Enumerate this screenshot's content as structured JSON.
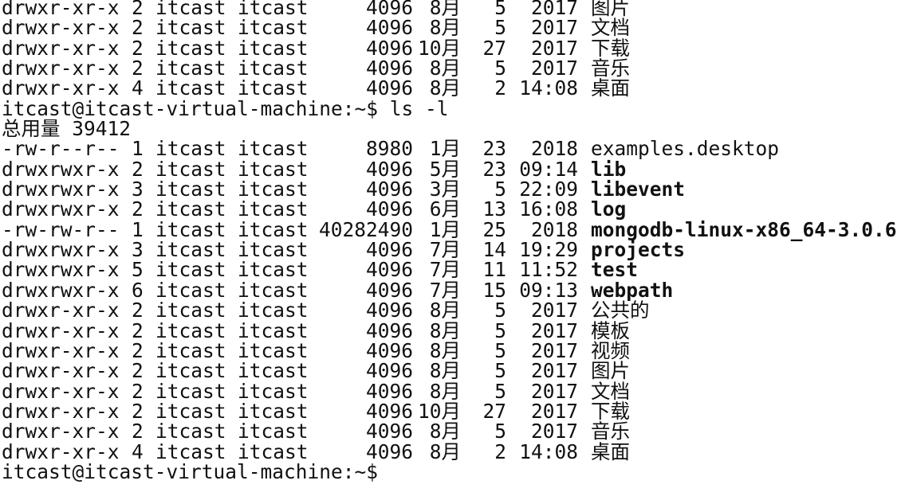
{
  "terminal": {
    "rows": [
      {
        "type": "entry",
        "perms": "drwxr-xr-x",
        "links": "2",
        "owner": "itcast",
        "group": "itcast",
        "size": "4096",
        "month": "8月",
        "day": "5",
        "time": "2017",
        "name": "图片",
        "bold": false
      },
      {
        "type": "entry",
        "perms": "drwxr-xr-x",
        "links": "2",
        "owner": "itcast",
        "group": "itcast",
        "size": "4096",
        "month": "8月",
        "day": "5",
        "time": "2017",
        "name": "文档",
        "bold": false
      },
      {
        "type": "entry",
        "perms": "drwxr-xr-x",
        "links": "2",
        "owner": "itcast",
        "group": "itcast",
        "size": "4096",
        "month": "10月",
        "day": "27",
        "time": "2017",
        "name": "下载",
        "bold": false
      },
      {
        "type": "entry",
        "perms": "drwxr-xr-x",
        "links": "2",
        "owner": "itcast",
        "group": "itcast",
        "size": "4096",
        "month": "8月",
        "day": "5",
        "time": "2017",
        "name": "音乐",
        "bold": false
      },
      {
        "type": "entry",
        "perms": "drwxr-xr-x",
        "links": "4",
        "owner": "itcast",
        "group": "itcast",
        "size": "4096",
        "month": "8月",
        "day": "2",
        "time": "14:08",
        "name": "桌面",
        "bold": false
      },
      {
        "type": "text",
        "text": "itcast@itcast-virtual-machine:~$ ls -l"
      },
      {
        "type": "text",
        "text": "总用量 39412"
      },
      {
        "type": "entry",
        "perms": "-rw-r--r--",
        "links": "1",
        "owner": "itcast",
        "group": "itcast",
        "size": "8980",
        "month": "1月",
        "day": "23",
        "time": "2018",
        "name": "examples.desktop",
        "bold": false
      },
      {
        "type": "entry",
        "perms": "drwxrwxr-x",
        "links": "2",
        "owner": "itcast",
        "group": "itcast",
        "size": "4096",
        "month": "5月",
        "day": "23",
        "time": "09:14",
        "name": "lib",
        "bold": true
      },
      {
        "type": "entry",
        "perms": "drwxrwxr-x",
        "links": "3",
        "owner": "itcast",
        "group": "itcast",
        "size": "4096",
        "month": "3月",
        "day": "5",
        "time": "22:09",
        "name": "libevent",
        "bold": true
      },
      {
        "type": "entry",
        "perms": "drwxrwxr-x",
        "links": "2",
        "owner": "itcast",
        "group": "itcast",
        "size": "4096",
        "month": "6月",
        "day": "13",
        "time": "16:08",
        "name": "log",
        "bold": true
      },
      {
        "type": "entry",
        "perms": "-rw-rw-r--",
        "links": "1",
        "owner": "itcast",
        "group": "itcast",
        "size": "40282490",
        "month": "1月",
        "day": "25",
        "time": "2018",
        "name": "mongodb-linux-x86_64-3.0.6",
        "bold": true
      },
      {
        "type": "entry",
        "perms": "drwxrwxr-x",
        "links": "3",
        "owner": "itcast",
        "group": "itcast",
        "size": "4096",
        "month": "7月",
        "day": "14",
        "time": "19:29",
        "name": "projects",
        "bold": true
      },
      {
        "type": "entry",
        "perms": "drwxrwxr-x",
        "links": "5",
        "owner": "itcast",
        "group": "itcast",
        "size": "4096",
        "month": "7月",
        "day": "11",
        "time": "11:52",
        "name": "test",
        "bold": true
      },
      {
        "type": "entry",
        "perms": "drwxrwxr-x",
        "links": "6",
        "owner": "itcast",
        "group": "itcast",
        "size": "4096",
        "month": "7月",
        "day": "15",
        "time": "09:13",
        "name": "webpath",
        "bold": true
      },
      {
        "type": "entry",
        "perms": "drwxr-xr-x",
        "links": "2",
        "owner": "itcast",
        "group": "itcast",
        "size": "4096",
        "month": "8月",
        "day": "5",
        "time": "2017",
        "name": "公共的",
        "bold": false
      },
      {
        "type": "entry",
        "perms": "drwxr-xr-x",
        "links": "2",
        "owner": "itcast",
        "group": "itcast",
        "size": "4096",
        "month": "8月",
        "day": "5",
        "time": "2017",
        "name": "模板",
        "bold": false
      },
      {
        "type": "entry",
        "perms": "drwxr-xr-x",
        "links": "2",
        "owner": "itcast",
        "group": "itcast",
        "size": "4096",
        "month": "8月",
        "day": "5",
        "time": "2017",
        "name": "视频",
        "bold": false
      },
      {
        "type": "entry",
        "perms": "drwxr-xr-x",
        "links": "2",
        "owner": "itcast",
        "group": "itcast",
        "size": "4096",
        "month": "8月",
        "day": "5",
        "time": "2017",
        "name": "图片",
        "bold": false
      },
      {
        "type": "entry",
        "perms": "drwxr-xr-x",
        "links": "2",
        "owner": "itcast",
        "group": "itcast",
        "size": "4096",
        "month": "8月",
        "day": "5",
        "time": "2017",
        "name": "文档",
        "bold": false
      },
      {
        "type": "entry",
        "perms": "drwxr-xr-x",
        "links": "2",
        "owner": "itcast",
        "group": "itcast",
        "size": "4096",
        "month": "10月",
        "day": "27",
        "time": "2017",
        "name": "下载",
        "bold": false
      },
      {
        "type": "entry",
        "perms": "drwxr-xr-x",
        "links": "2",
        "owner": "itcast",
        "group": "itcast",
        "size": "4096",
        "month": "8月",
        "day": "5",
        "time": "2017",
        "name": "音乐",
        "bold": false
      },
      {
        "type": "entry",
        "perms": "drwxr-xr-x",
        "links": "4",
        "owner": "itcast",
        "group": "itcast",
        "size": "4096",
        "month": "8月",
        "day": "2",
        "time": "14:08",
        "name": "桌面",
        "bold": false
      },
      {
        "type": "text",
        "text": "itcast@itcast-virtual-machine:~$"
      }
    ]
  }
}
